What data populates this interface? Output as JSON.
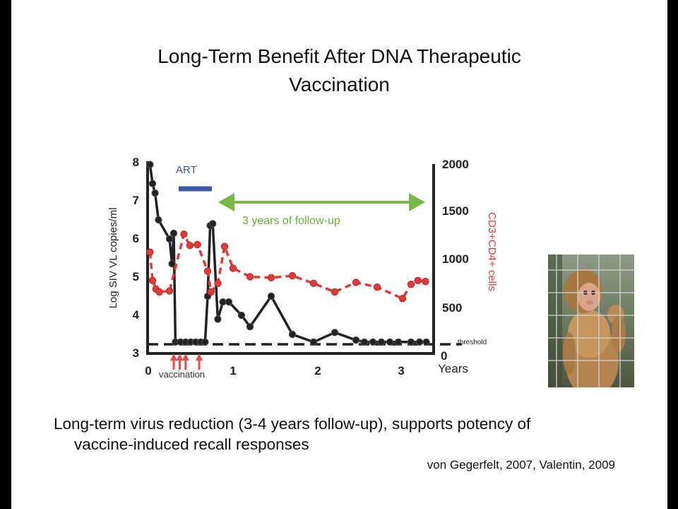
{
  "slide": {
    "title_line1": "Long-Term Benefit After DNA Therapeutic",
    "title_line2": "Vaccination",
    "caption_line1": "Long-term virus reduction (3-4 years follow-up), supports potency of",
    "caption_line2": "vaccine-induced recall responses",
    "citation": "von Gegerfelt, 2007, Valentin, 2009"
  },
  "chart_data": {
    "type": "line",
    "xlabel": "Years",
    "ylabel_left": "Log SIV VL copies/ml",
    "ylabel_right": "CD3+CD4+ cells",
    "xlim": [
      0,
      3.3
    ],
    "ylim_left": [
      3,
      8
    ],
    "ylim_right": [
      0,
      2000
    ],
    "x_ticks": [
      "0",
      "1",
      "2",
      "3"
    ],
    "y_ticks_left": [
      "3",
      "4",
      "5",
      "6",
      "7",
      "8"
    ],
    "y_ticks_right": [
      "0",
      "500",
      "1000",
      "1500",
      "2000"
    ],
    "threshold_value": 3.25,
    "annotations": {
      "threshold": "threshold",
      "art": "ART",
      "art_interval": [
        0.37,
        0.76
      ],
      "follow_up": "3 years of follow-up",
      "follow_up_interval": [
        0.85,
        3.25
      ],
      "vaccination": "vaccination",
      "vaccination_times": [
        0.3,
        0.37,
        0.44,
        0.6
      ]
    },
    "series": [
      {
        "axis": "left",
        "color": "#222222",
        "style": "solid",
        "points": [
          [
            0.02,
            7.95
          ],
          [
            0.05,
            7.45
          ],
          [
            0.08,
            7.2
          ],
          [
            0.12,
            6.5
          ],
          [
            0.25,
            6.0
          ],
          [
            0.28,
            5.35
          ],
          [
            0.3,
            6.15
          ],
          [
            0.32,
            3.3
          ],
          [
            0.38,
            3.3
          ],
          [
            0.44,
            3.3
          ],
          [
            0.5,
            3.3
          ],
          [
            0.56,
            3.3
          ],
          [
            0.62,
            3.3
          ],
          [
            0.67,
            3.3
          ],
          [
            0.7,
            4.5
          ],
          [
            0.73,
            6.35
          ],
          [
            0.76,
            6.4
          ],
          [
            0.82,
            3.9
          ],
          [
            0.88,
            4.35
          ],
          [
            0.95,
            4.35
          ],
          [
            1.1,
            4.0
          ],
          [
            1.2,
            3.7
          ],
          [
            1.45,
            4.5
          ],
          [
            1.7,
            3.5
          ],
          [
            1.95,
            3.3
          ],
          [
            2.2,
            3.55
          ],
          [
            2.45,
            3.35
          ],
          [
            2.55,
            3.3
          ],
          [
            2.65,
            3.3
          ],
          [
            2.75,
            3.3
          ],
          [
            2.85,
            3.3
          ],
          [
            2.95,
            3.3
          ],
          [
            3.1,
            3.3
          ],
          [
            3.2,
            3.3
          ],
          [
            3.28,
            3.3
          ]
        ]
      },
      {
        "axis": "right",
        "color": "#e03a3a",
        "style": "dashed",
        "points": [
          [
            0.02,
            1070
          ],
          [
            0.05,
            770
          ],
          [
            0.09,
            680
          ],
          [
            0.13,
            650
          ],
          [
            0.25,
            660
          ],
          [
            0.42,
            1260
          ],
          [
            0.49,
            1140
          ],
          [
            0.58,
            1150
          ],
          [
            0.7,
            870
          ],
          [
            0.74,
            650
          ],
          [
            0.82,
            740
          ],
          [
            0.9,
            1130
          ],
          [
            1.0,
            900
          ],
          [
            1.2,
            810
          ],
          [
            1.45,
            800
          ],
          [
            1.7,
            820
          ],
          [
            1.95,
            740
          ],
          [
            2.2,
            650
          ],
          [
            2.45,
            750
          ],
          [
            2.7,
            700
          ],
          [
            3.0,
            580
          ],
          [
            3.1,
            730
          ],
          [
            3.18,
            770
          ],
          [
            3.27,
            760
          ]
        ]
      }
    ]
  }
}
